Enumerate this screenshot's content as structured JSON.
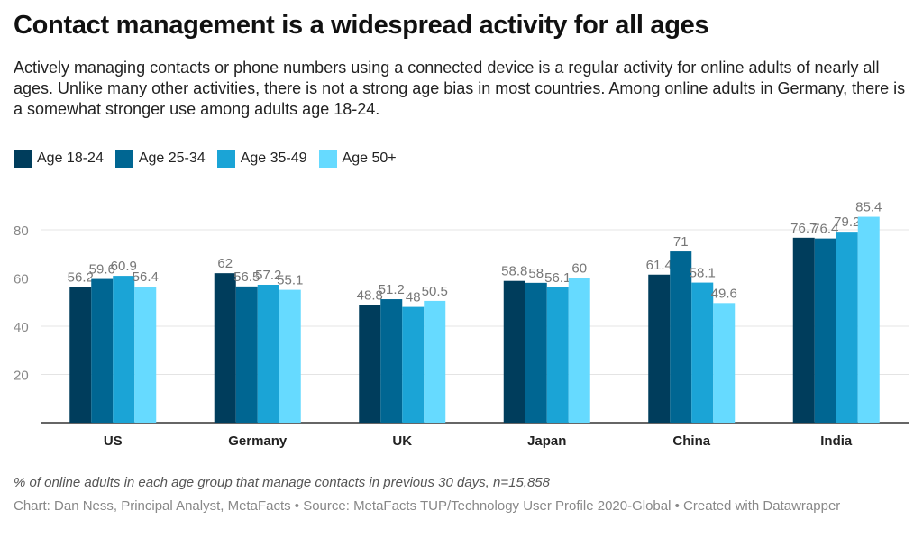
{
  "header": {
    "title": "Contact management is a widespread activity for all ages",
    "subtitle": "Actively managing contacts or phone numbers using a connected device is a regular activity for online adults of nearly all ages. Unlike many other activities, there is not a strong age bias in most countries. Among online adults in Germany, there is a somewhat stronger use among adults age 18-24."
  },
  "chart_data": {
    "type": "bar",
    "categories": [
      "US",
      "Germany",
      "UK",
      "Japan",
      "China",
      "India"
    ],
    "series": [
      {
        "name": "Age 18-24",
        "color": "#003d5c",
        "values": [
          56.2,
          62,
          48.8,
          58.8,
          61.4,
          76.7
        ]
      },
      {
        "name": "Age 25-34",
        "color": "#006692",
        "values": [
          59.6,
          56.5,
          51.2,
          58,
          71,
          76.4
        ]
      },
      {
        "name": "Age 35-49",
        "color": "#1ba4d6",
        "values": [
          60.9,
          57.2,
          48,
          56.1,
          58.1,
          79.2
        ]
      },
      {
        "name": "Age 50+",
        "color": "#66daff",
        "values": [
          56.4,
          55.1,
          50.5,
          60,
          49.6,
          85.4
        ]
      }
    ],
    "yticks": [
      20,
      40,
      60,
      80
    ],
    "ylim": [
      0,
      90
    ],
    "grid": true,
    "legend_position": "top-left"
  },
  "footer": {
    "notes": "% of online adults in each age group that manage contacts in previous 30 days, n=15,858",
    "byline": "Chart: Dan Ness, Principal Analyst, MetaFacts • Source: MetaFacts TUP/Technology User Profile 2020-Global • Created with Datawrapper"
  }
}
